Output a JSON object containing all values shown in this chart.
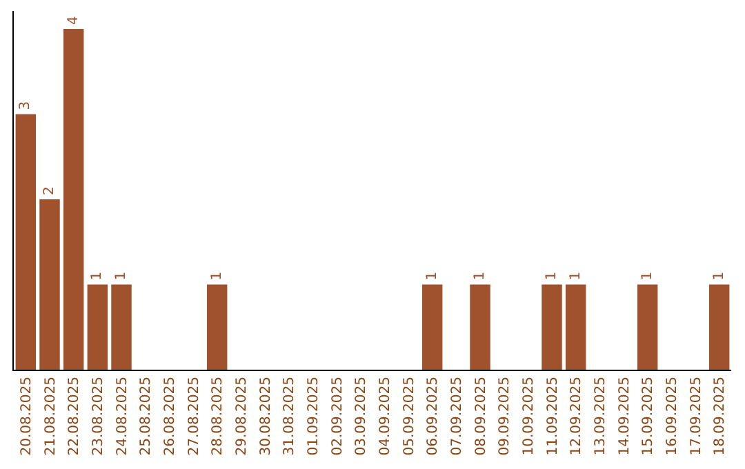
{
  "chart_data": {
    "type": "bar",
    "categories": [
      "20.08.2025",
      "21.08.2025",
      "22.08.2025",
      "23.08.2025",
      "24.08.2025",
      "25.08.2025",
      "26.08.2025",
      "27.08.2025",
      "28.08.2025",
      "29.08.2025",
      "30.08.2025",
      "31.08.2025",
      "01.09.2025",
      "02.09.2025",
      "03.09.2025",
      "04.09.2025",
      "05.09.2025",
      "06.09.2025",
      "07.09.2025",
      "08.09.2025",
      "09.09.2025",
      "10.09.2025",
      "11.09.2025",
      "12.09.2025",
      "13.09.2025",
      "14.09.2025",
      "15.09.2025",
      "16.09.2025",
      "17.09.2025",
      "18.09.2025"
    ],
    "values": [
      3,
      2,
      4,
      1,
      1,
      0,
      0,
      0,
      1,
      0,
      0,
      0,
      0,
      0,
      0,
      0,
      0,
      1,
      0,
      1,
      0,
      0,
      1,
      1,
      0,
      0,
      1,
      0,
      0,
      1
    ],
    "value_labels": [
      "3",
      "2",
      "4",
      "1",
      "1",
      null,
      null,
      null,
      "1",
      null,
      null,
      null,
      null,
      null,
      null,
      null,
      null,
      "1",
      null,
      "1",
      null,
      null,
      "1",
      "1",
      null,
      null,
      "1",
      null,
      null,
      "1"
    ],
    "color": "#a0522d",
    "tick_labels": "x"
  }
}
